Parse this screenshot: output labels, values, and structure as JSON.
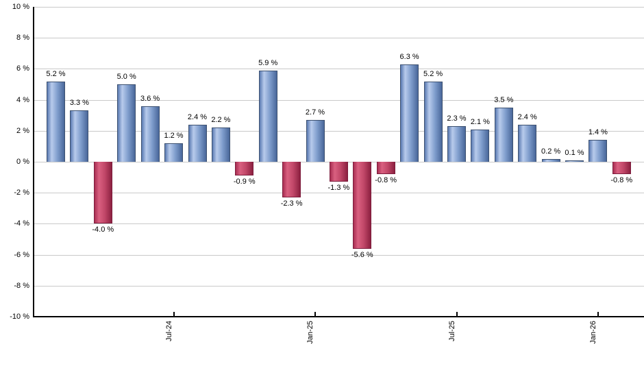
{
  "chart_data": {
    "type": "bar",
    "title": "",
    "xlabel": "",
    "ylabel": "",
    "ylim": [
      -10,
      10
    ],
    "ytick_step": 2,
    "grid": true,
    "legend": "none",
    "yticks": [
      "10 %",
      "8 %",
      "6 %",
      "4 %",
      "2 %",
      "0 %",
      "-2 %",
      "-4 %",
      "-6 %",
      "-8 %",
      "-10 %"
    ],
    "xticks": [
      {
        "index": 5,
        "label": "Jul-24"
      },
      {
        "index": 11,
        "label": "Jan-25"
      },
      {
        "index": 17,
        "label": "Jul-25"
      },
      {
        "index": 23,
        "label": "Jan-26"
      }
    ],
    "bars": [
      {
        "value": 5.2,
        "label": "5.2 %"
      },
      {
        "value": 3.3,
        "label": "3.3 %"
      },
      {
        "value": -4.0,
        "label": "-4.0 %"
      },
      {
        "value": 5.0,
        "label": "5.0 %"
      },
      {
        "value": 3.6,
        "label": "3.6 %"
      },
      {
        "value": 1.2,
        "label": "1.2 %"
      },
      {
        "value": 2.4,
        "label": "2.4 %"
      },
      {
        "value": 2.2,
        "label": "2.2 %"
      },
      {
        "value": -0.9,
        "label": "-0.9 %"
      },
      {
        "value": 5.9,
        "label": "5.9 %"
      },
      {
        "value": -2.3,
        "label": "-2.3 %"
      },
      {
        "value": 2.7,
        "label": "2.7 %"
      },
      {
        "value": -1.3,
        "label": "-1.3 %"
      },
      {
        "value": -5.6,
        "label": "-5.6 %"
      },
      {
        "value": -0.8,
        "label": "-0.8 %"
      },
      {
        "value": 6.3,
        "label": "6.3 %"
      },
      {
        "value": 5.2,
        "label": "5.2 %"
      },
      {
        "value": 2.3,
        "label": "2.3 %"
      },
      {
        "value": 2.1,
        "label": "2.1 %"
      },
      {
        "value": 3.5,
        "label": "3.5 %"
      },
      {
        "value": 2.4,
        "label": "2.4 %"
      },
      {
        "value": 0.2,
        "label": "0.2 %"
      },
      {
        "value": 0.1,
        "label": "0.1 %"
      },
      {
        "value": 1.4,
        "label": "1.4 %"
      },
      {
        "value": -0.8,
        "label": "-0.8 %"
      }
    ],
    "colors": {
      "positive_gradient": [
        "#5a7ab2",
        "#b8cbec",
        "#7f9dcc",
        "#49679a"
      ],
      "positive_border": "#3d5170",
      "negative_gradient": [
        "#a82e52",
        "#d96080",
        "#c14768",
        "#8c2040"
      ],
      "negative_border": "#7d1d3d",
      "gridline": "#c9c9c9",
      "axis": "#000000",
      "text": "#000000"
    }
  }
}
